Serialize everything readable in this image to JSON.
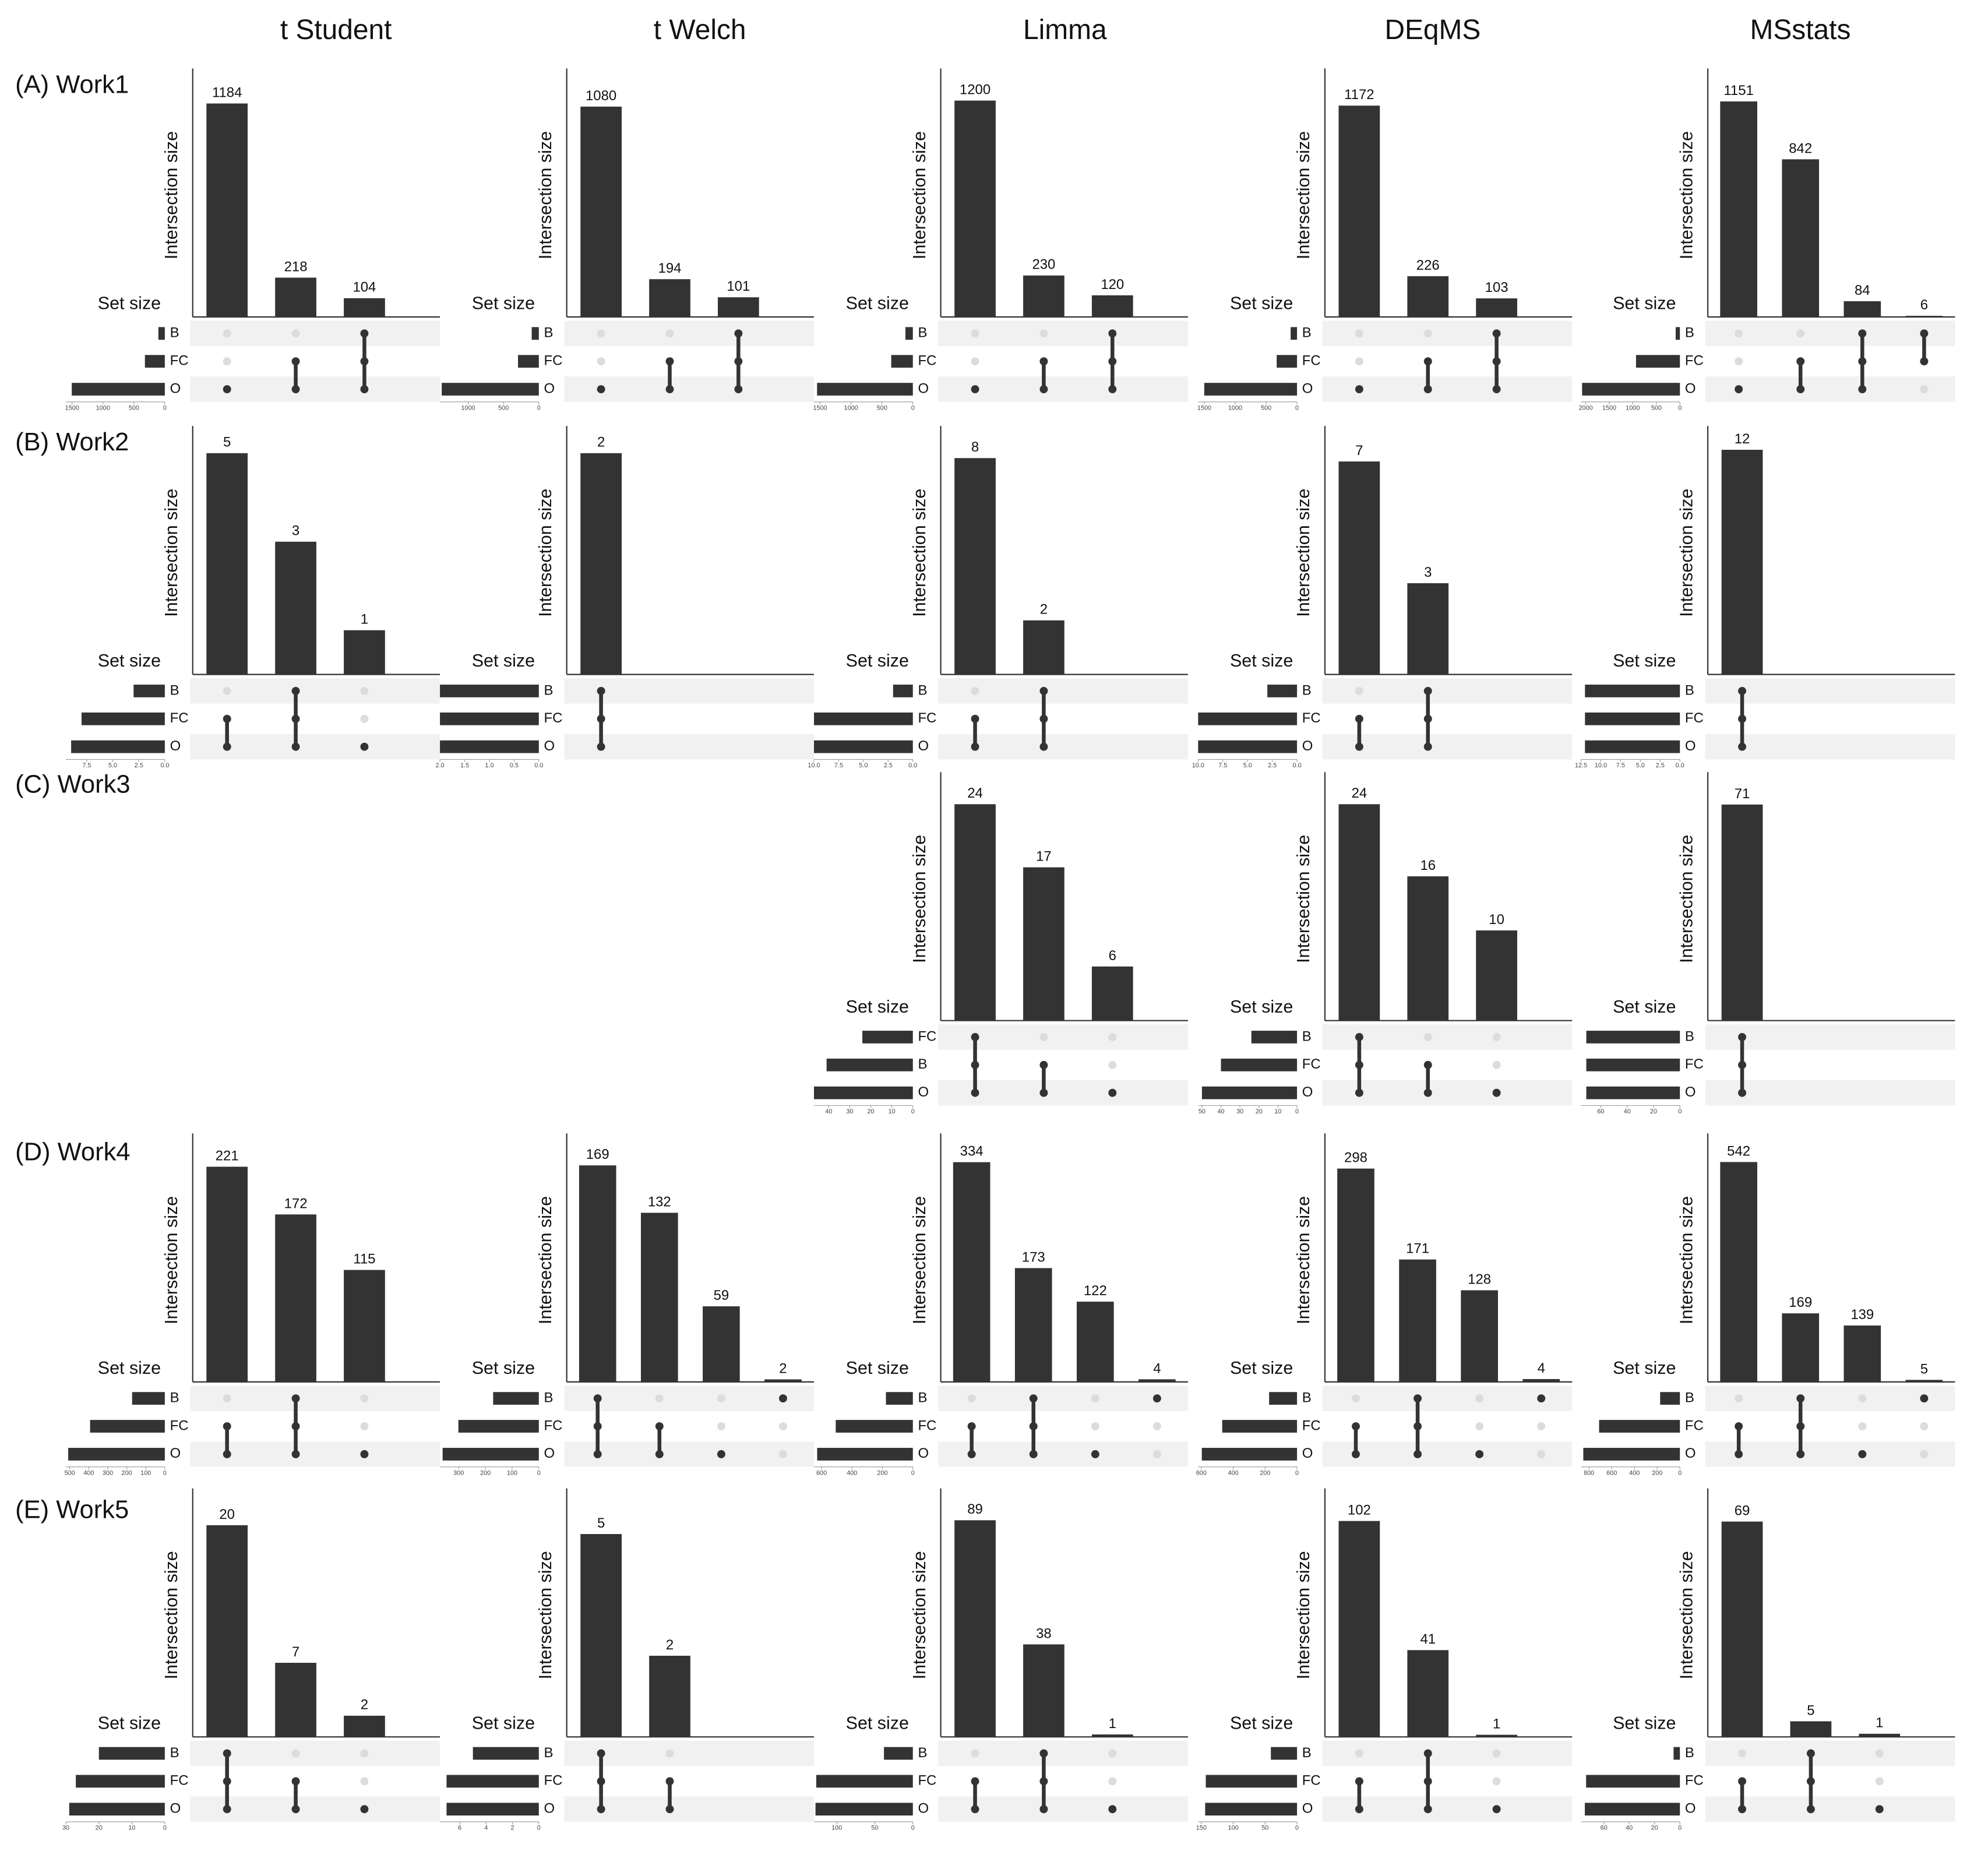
{
  "columns": [
    "t Student",
    "t Welch",
    "Limma",
    "DEqMS",
    "MSstats"
  ],
  "rows": [
    "(A) Work1",
    "(B) Work2",
    "(C) Work3",
    "(D) Work4",
    "(E) Work5"
  ],
  "chart_data": [
    {
      "type": "upset",
      "y_label": "Intersection size",
      "set_size_label": "Set size",
      "sets": [
        "B",
        "FC",
        "O"
      ],
      "set_sizes": [
        104,
        322,
        1506
      ],
      "set_size_lim": [
        1600,
        0
      ],
      "set_size_ticks": [
        1500,
        1000,
        500,
        0
      ],
      "intersections": [
        [
          "O"
        ],
        [
          "FC",
          "O"
        ],
        [
          "B",
          "FC",
          "O"
        ]
      ],
      "values": [
        1184,
        218,
        104
      ],
      "ylim": [
        0,
        1350
      ]
    },
    {
      "type": "upset",
      "y_label": "Intersection size",
      "set_size_label": "Set size",
      "sets": [
        "B",
        "FC",
        "O"
      ],
      "set_sizes": [
        101,
        295,
        1375
      ],
      "set_size_lim": [
        1400,
        0
      ],
      "set_size_ticks": [
        1000,
        500,
        0
      ],
      "intersections": [
        [
          "O"
        ],
        [
          "FC",
          "O"
        ],
        [
          "B",
          "FC",
          "O"
        ]
      ],
      "values": [
        1080,
        194,
        101
      ],
      "ylim": [
        0,
        1250
      ]
    },
    {
      "type": "upset",
      "y_label": "Intersection size",
      "set_size_label": "Set size",
      "sets": [
        "B",
        "FC",
        "O"
      ],
      "set_sizes": [
        120,
        350,
        1550
      ],
      "set_size_lim": [
        1600,
        0
      ],
      "set_size_ticks": [
        1500,
        1000,
        500,
        0
      ],
      "intersections": [
        [
          "O"
        ],
        [
          "FC",
          "O"
        ],
        [
          "B",
          "FC",
          "O"
        ]
      ],
      "values": [
        1200,
        230,
        120
      ],
      "ylim": [
        0,
        1350
      ]
    },
    {
      "type": "upset",
      "y_label": "Intersection size",
      "set_size_label": "Set size",
      "sets": [
        "B",
        "FC",
        "O"
      ],
      "set_sizes": [
        103,
        329,
        1501
      ],
      "set_size_lim": [
        1600,
        0
      ],
      "set_size_ticks": [
        1500,
        1000,
        500,
        0
      ],
      "intersections": [
        [
          "O"
        ],
        [
          "FC",
          "O"
        ],
        [
          "B",
          "FC",
          "O"
        ]
      ],
      "values": [
        1172,
        226,
        103
      ],
      "ylim": [
        0,
        1350
      ]
    },
    {
      "type": "upset",
      "y_label": "Intersection size",
      "set_size_label": "Set size",
      "sets": [
        "B",
        "FC",
        "O"
      ],
      "set_sizes": [
        90,
        932,
        2077
      ],
      "set_size_lim": [
        2100,
        0
      ],
      "set_size_ticks": [
        2000,
        1500,
        1000,
        500,
        0
      ],
      "intersections": [
        [
          "O"
        ],
        [
          "FC",
          "O"
        ],
        [
          "B",
          "FC",
          "O"
        ],
        [
          "B",
          "FC"
        ]
      ],
      "values": [
        1151,
        842,
        84,
        6
      ],
      "ylim": [
        0,
        1300
      ]
    },
    {
      "type": "upset",
      "y_label": "Intersection size",
      "set_size_label": "Set size",
      "sets": [
        "B",
        "FC",
        "O"
      ],
      "set_sizes": [
        3,
        8,
        9
      ],
      "set_size_lim": [
        9.5,
        0
      ],
      "set_size_ticks": [
        7.5,
        {
          "value": 5,
          "label": "5.0"
        },
        2.5,
        {
          "value": 0,
          "label": "0.0"
        }
      ],
      "intersections": [
        [
          "FC",
          "O"
        ],
        [
          "B",
          "FC",
          "O"
        ],
        [
          "O"
        ]
      ],
      "values": [
        5,
        3,
        1
      ],
      "ylim": [
        0,
        5.5
      ]
    },
    {
      "type": "upset",
      "y_label": "Intersection size",
      "set_size_label": "Set size",
      "sets": [
        "B",
        "FC",
        "O"
      ],
      "set_sizes": [
        2,
        2,
        2
      ],
      "set_size_lim": [
        2,
        0
      ],
      "set_size_ticks": [
        {
          "value": 2,
          "label": "2.0"
        },
        1.5,
        {
          "value": 1,
          "label": "1.0"
        },
        0.5,
        {
          "value": 0,
          "label": "0.0"
        }
      ],
      "intersections": [
        [
          "B",
          "FC",
          "O"
        ]
      ],
      "values": [
        2
      ],
      "ylim": [
        0,
        2.2
      ]
    },
    {
      "type": "upset",
      "y_label": "Intersection size",
      "set_size_label": "Set size",
      "sets": [
        "B",
        "FC",
        "O"
      ],
      "set_sizes": [
        2,
        10,
        10
      ],
      "set_size_lim": [
        10,
        0
      ],
      "set_size_ticks": [
        {
          "value": 10,
          "label": "10.0"
        },
        7.5,
        {
          "value": 5,
          "label": "5.0"
        },
        2.5,
        {
          "value": 0,
          "label": "0.0"
        }
      ],
      "intersections": [
        [
          "FC",
          "O"
        ],
        [
          "B",
          "FC",
          "O"
        ]
      ],
      "values": [
        8,
        2
      ],
      "ylim": [
        0,
        9
      ]
    },
    {
      "type": "upset",
      "y_label": "Intersection size",
      "set_size_label": "Set size",
      "sets": [
        "B",
        "FC",
        "O"
      ],
      "set_sizes": [
        3,
        10,
        10
      ],
      "set_size_lim": [
        10,
        0
      ],
      "set_size_ticks": [
        {
          "value": 10,
          "label": "10.0"
        },
        7.5,
        {
          "value": 5,
          "label": "5.0"
        },
        2.5,
        {
          "value": 0,
          "label": "0.0"
        }
      ],
      "intersections": [
        [
          "FC",
          "O"
        ],
        [
          "B",
          "FC",
          "O"
        ]
      ],
      "values": [
        7,
        3
      ],
      "ylim": [
        0,
        8
      ]
    },
    {
      "type": "upset",
      "y_label": "Intersection size",
      "set_size_label": "Set size",
      "sets": [
        "B",
        "FC",
        "O"
      ],
      "set_sizes": [
        12,
        12,
        12
      ],
      "set_size_lim": [
        12.5,
        0
      ],
      "set_size_ticks": [
        12.5,
        {
          "value": 10,
          "label": "10.0"
        },
        7.5,
        {
          "value": 5,
          "label": "5.0"
        },
        2.5,
        {
          "value": 0,
          "label": "0.0"
        }
      ],
      "intersections": [
        [
          "B",
          "FC",
          "O"
        ]
      ],
      "values": [
        12
      ],
      "ylim": [
        0,
        13
      ]
    },
    {
      "type": "upset",
      "y_label": "Intersection size",
      "set_size_label": "Set size",
      "sets": [
        "FC",
        "B",
        "O"
      ],
      "set_sizes": [
        24,
        41,
        47
      ],
      "set_size_lim": [
        47,
        0
      ],
      "set_size_ticks": [
        40,
        30,
        20,
        10,
        0
      ],
      "intersections": [
        [
          "FC",
          "B",
          "O"
        ],
        [
          "B",
          "O"
        ],
        [
          "O"
        ]
      ],
      "values": [
        24,
        17,
        6
      ],
      "ylim": [
        0,
        27
      ]
    },
    {
      "type": "upset",
      "y_label": "Intersection size",
      "set_size_label": "Set size",
      "sets": [
        "B",
        "FC",
        "O"
      ],
      "set_sizes": [
        24,
        40,
        50
      ],
      "set_size_lim": [
        52,
        0
      ],
      "set_size_ticks": [
        50,
        40,
        30,
        20,
        10,
        0
      ],
      "intersections": [
        [
          "B",
          "FC",
          "O"
        ],
        [
          "FC",
          "O"
        ],
        [
          "O"
        ]
      ],
      "values": [
        24,
        16,
        10
      ],
      "ylim": [
        0,
        27
      ]
    },
    {
      "type": "upset",
      "y_label": "Intersection size",
      "set_size_label": "Set size",
      "sets": [
        "B",
        "FC",
        "O"
      ],
      "set_sizes": [
        71,
        71,
        71
      ],
      "set_size_lim": [
        75,
        0
      ],
      "set_size_ticks": [
        60,
        40,
        20,
        0
      ],
      "intersections": [
        [
          "B",
          "FC",
          "O"
        ]
      ],
      "values": [
        71
      ],
      "ylim": [
        0,
        80
      ]
    },
    {
      "type": "upset",
      "y_label": "Intersection size",
      "set_size_label": "Set size",
      "sets": [
        "B",
        "FC",
        "O"
      ],
      "set_sizes": [
        172,
        393,
        508
      ],
      "set_size_lim": [
        520,
        0
      ],
      "set_size_ticks": [
        500,
        400,
        300,
        200,
        100,
        0
      ],
      "intersections": [
        [
          "FC",
          "O"
        ],
        [
          "B",
          "FC",
          "O"
        ],
        [
          "O"
        ]
      ],
      "values": [
        221,
        172,
        115
      ],
      "ylim": [
        0,
        250
      ]
    },
    {
      "type": "upset",
      "y_label": "Intersection size",
      "set_size_label": "Set size",
      "sets": [
        "B",
        "FC",
        "O"
      ],
      "set_sizes": [
        171,
        301,
        360
      ],
      "set_size_lim": [
        370,
        0
      ],
      "set_size_ticks": [
        300,
        200,
        100,
        0
      ],
      "intersections": [
        [
          "B",
          "FC",
          "O"
        ],
        [
          "FC",
          "O"
        ],
        [
          "O"
        ],
        [
          "B"
        ]
      ],
      "values": [
        169,
        132,
        59,
        2
      ],
      "ylim": [
        0,
        190
      ]
    },
    {
      "type": "upset",
      "y_label": "Intersection size",
      "set_size_label": "Set size",
      "sets": [
        "B",
        "FC",
        "O"
      ],
      "set_sizes": [
        177,
        507,
        629
      ],
      "set_size_lim": [
        650,
        0
      ],
      "set_size_ticks": [
        600,
        400,
        200,
        0
      ],
      "intersections": [
        [
          "FC",
          "O"
        ],
        [
          "B",
          "FC",
          "O"
        ],
        [
          "O"
        ],
        [
          "B"
        ]
      ],
      "values": [
        334,
        173,
        122,
        4
      ],
      "ylim": [
        0,
        370
      ]
    },
    {
      "type": "upset",
      "y_label": "Intersection size",
      "set_size_label": "Set size",
      "sets": [
        "B",
        "FC",
        "O"
      ],
      "set_sizes": [
        175,
        469,
        597
      ],
      "set_size_lim": [
        620,
        0
      ],
      "set_size_ticks": [
        600,
        400,
        200,
        0
      ],
      "intersections": [
        [
          "FC",
          "O"
        ],
        [
          "B",
          "FC",
          "O"
        ],
        [
          "O"
        ],
        [
          "B"
        ]
      ],
      "values": [
        298,
        171,
        128,
        4
      ],
      "ylim": [
        0,
        340
      ]
    },
    {
      "type": "upset",
      "y_label": "Intersection size",
      "set_size_label": "Set size",
      "sets": [
        "B",
        "FC",
        "O"
      ],
      "set_sizes": [
        174,
        711,
        850
      ],
      "set_size_lim": [
        870,
        0
      ],
      "set_size_ticks": [
        800,
        600,
        400,
        200,
        0
      ],
      "intersections": [
        [
          "FC",
          "O"
        ],
        [
          "B",
          "FC",
          "O"
        ],
        [
          "O"
        ],
        [
          "B"
        ]
      ],
      "values": [
        542,
        169,
        139,
        5
      ],
      "ylim": [
        0,
        600
      ]
    },
    {
      "type": "upset",
      "y_label": "Intersection size",
      "set_size_label": "Set size",
      "sets": [
        "B",
        "FC",
        "O"
      ],
      "set_sizes": [
        20,
        27,
        29
      ],
      "set_size_lim": [
        30,
        0
      ],
      "set_size_ticks": [
        30,
        20,
        10,
        0
      ],
      "intersections": [
        [
          "B",
          "FC",
          "O"
        ],
        [
          "FC",
          "O"
        ],
        [
          "O"
        ]
      ],
      "values": [
        20,
        7,
        2
      ],
      "ylim": [
        0,
        23
      ]
    },
    {
      "type": "upset",
      "y_label": "Intersection size",
      "set_size_label": "Set size",
      "sets": [
        "B",
        "FC",
        "O"
      ],
      "set_sizes": [
        5,
        7,
        7
      ],
      "set_size_lim": [
        7.5,
        0
      ],
      "set_size_ticks": [
        6,
        4,
        2,
        0
      ],
      "intersections": [
        [
          "B",
          "FC",
          "O"
        ],
        [
          "FC",
          "O"
        ]
      ],
      "values": [
        5,
        2
      ],
      "ylim": [
        0,
        6
      ]
    },
    {
      "type": "upset",
      "y_label": "Intersection size",
      "set_size_label": "Set size",
      "sets": [
        "B",
        "FC",
        "O"
      ],
      "set_sizes": [
        38,
        127,
        128
      ],
      "set_size_lim": [
        130,
        0
      ],
      "set_size_ticks": [
        100,
        50,
        0
      ],
      "intersections": [
        [
          "FC",
          "O"
        ],
        [
          "B",
          "FC",
          "O"
        ],
        [
          "O"
        ]
      ],
      "values": [
        89,
        38,
        1
      ],
      "ylim": [
        0,
        100
      ]
    },
    {
      "type": "upset",
      "y_label": "Intersection size",
      "set_size_label": "Set size",
      "sets": [
        "B",
        "FC",
        "O"
      ],
      "set_sizes": [
        41,
        143,
        144
      ],
      "set_size_lim": [
        155,
        0
      ],
      "set_size_ticks": [
        150,
        100,
        50,
        0
      ],
      "intersections": [
        [
          "FC",
          "O"
        ],
        [
          "B",
          "FC",
          "O"
        ],
        [
          "O"
        ]
      ],
      "values": [
        102,
        41,
        1
      ],
      "ylim": [
        0,
        115
      ]
    },
    {
      "type": "upset",
      "y_label": "Intersection size",
      "set_size_label": "Set size",
      "sets": [
        "B",
        "FC",
        "O"
      ],
      "set_sizes": [
        5,
        74,
        75
      ],
      "set_size_lim": [
        78,
        0
      ],
      "set_size_ticks": [
        60,
        40,
        20,
        0
      ],
      "intersections": [
        [
          "FC",
          "O"
        ],
        [
          "B",
          "FC",
          "O"
        ],
        [
          "O"
        ]
      ],
      "values": [
        69,
        5,
        1
      ],
      "ylim": [
        0,
        78
      ]
    }
  ]
}
